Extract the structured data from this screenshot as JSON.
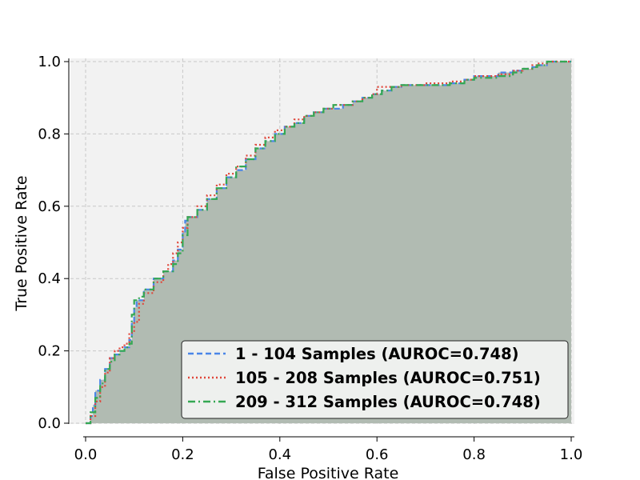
{
  "chart_data": {
    "type": "line",
    "title": "",
    "xlabel": "False Positive Rate",
    "ylabel": "True Positive Rate",
    "xlim": [
      0.0,
      1.0
    ],
    "ylim": [
      0.0,
      1.0
    ],
    "xticks": [
      "0.0",
      "0.2",
      "0.4",
      "0.6",
      "0.8",
      "1.0"
    ],
    "yticks": [
      "0.0",
      "0.2",
      "0.4",
      "0.6",
      "0.8",
      "1.0"
    ],
    "grid": true,
    "legend_position": "lower-right",
    "fill_under_curves": true,
    "series": [
      {
        "name": "1 - 104 Samples (AUROC=0.748)",
        "color": "#4a86e8",
        "dash": "dashed",
        "x": [
          0.0,
          0.01,
          0.015,
          0.02,
          0.03,
          0.04,
          0.05,
          0.06,
          0.07,
          0.08,
          0.09,
          0.095,
          0.1,
          0.105,
          0.12,
          0.14,
          0.16,
          0.18,
          0.19,
          0.2,
          0.205,
          0.21,
          0.23,
          0.25,
          0.27,
          0.29,
          0.31,
          0.33,
          0.35,
          0.37,
          0.39,
          0.41,
          0.43,
          0.45,
          0.47,
          0.49,
          0.51,
          0.53,
          0.55,
          0.57,
          0.59,
          0.61,
          0.63,
          0.65,
          0.7,
          0.75,
          0.78,
          0.8,
          0.85,
          0.88,
          0.9,
          0.92,
          0.93,
          0.95,
          1.0
        ],
        "y": [
          0.0,
          0.02,
          0.05,
          0.09,
          0.12,
          0.15,
          0.18,
          0.19,
          0.2,
          0.21,
          0.23,
          0.28,
          0.32,
          0.34,
          0.37,
          0.4,
          0.42,
          0.45,
          0.48,
          0.53,
          0.56,
          0.57,
          0.59,
          0.62,
          0.65,
          0.68,
          0.7,
          0.73,
          0.76,
          0.78,
          0.8,
          0.82,
          0.83,
          0.85,
          0.86,
          0.87,
          0.87,
          0.88,
          0.89,
          0.9,
          0.91,
          0.92,
          0.93,
          0.935,
          0.935,
          0.94,
          0.95,
          0.96,
          0.97,
          0.975,
          0.98,
          0.985,
          0.99,
          1.0,
          1.0
        ]
      },
      {
        "name": "105 - 208 Samples (AUROC=0.751)",
        "color": "#e0463a",
        "dash": "dotted",
        "x": [
          0.0,
          0.01,
          0.02,
          0.03,
          0.04,
          0.05,
          0.06,
          0.07,
          0.08,
          0.09,
          0.1,
          0.11,
          0.12,
          0.14,
          0.16,
          0.17,
          0.18,
          0.19,
          0.2,
          0.21,
          0.23,
          0.25,
          0.27,
          0.29,
          0.31,
          0.33,
          0.35,
          0.37,
          0.39,
          0.41,
          0.43,
          0.45,
          0.47,
          0.49,
          0.51,
          0.53,
          0.55,
          0.57,
          0.59,
          0.6,
          0.62,
          0.65,
          0.7,
          0.75,
          0.78,
          0.8,
          0.85,
          0.88,
          0.9,
          0.92,
          0.93,
          0.95,
          1.0
        ],
        "y": [
          0.0,
          0.02,
          0.06,
          0.1,
          0.14,
          0.18,
          0.2,
          0.21,
          0.22,
          0.25,
          0.28,
          0.33,
          0.36,
          0.39,
          0.42,
          0.44,
          0.47,
          0.5,
          0.54,
          0.57,
          0.6,
          0.63,
          0.66,
          0.69,
          0.71,
          0.74,
          0.77,
          0.79,
          0.81,
          0.82,
          0.84,
          0.85,
          0.86,
          0.87,
          0.88,
          0.88,
          0.89,
          0.9,
          0.91,
          0.93,
          0.93,
          0.935,
          0.94,
          0.945,
          0.95,
          0.96,
          0.965,
          0.975,
          0.98,
          0.99,
          0.995,
          1.0,
          1.0
        ]
      },
      {
        "name": "209 - 312 Samples (AUROC=0.748)",
        "color": "#34a853",
        "dash": "dashdot",
        "x": [
          0.0,
          0.01,
          0.02,
          0.03,
          0.04,
          0.05,
          0.06,
          0.07,
          0.08,
          0.09,
          0.095,
          0.1,
          0.11,
          0.12,
          0.14,
          0.16,
          0.18,
          0.19,
          0.2,
          0.21,
          0.23,
          0.25,
          0.27,
          0.29,
          0.31,
          0.33,
          0.35,
          0.37,
          0.39,
          0.41,
          0.43,
          0.45,
          0.47,
          0.49,
          0.51,
          0.53,
          0.55,
          0.57,
          0.59,
          0.61,
          0.63,
          0.65,
          0.7,
          0.75,
          0.78,
          0.8,
          0.85,
          0.88,
          0.9,
          0.92,
          0.93,
          0.95,
          1.0
        ],
        "y": [
          0.0,
          0.03,
          0.07,
          0.11,
          0.15,
          0.17,
          0.19,
          0.2,
          0.21,
          0.22,
          0.3,
          0.34,
          0.35,
          0.37,
          0.4,
          0.42,
          0.44,
          0.47,
          0.52,
          0.57,
          0.59,
          0.62,
          0.65,
          0.68,
          0.71,
          0.73,
          0.76,
          0.78,
          0.8,
          0.82,
          0.83,
          0.85,
          0.86,
          0.87,
          0.88,
          0.88,
          0.89,
          0.9,
          0.91,
          0.92,
          0.93,
          0.935,
          0.935,
          0.94,
          0.95,
          0.955,
          0.96,
          0.97,
          0.98,
          0.985,
          0.99,
          1.0,
          1.0
        ]
      }
    ]
  },
  "colors": {
    "plot_background": "#f2f2f2",
    "fill_overlap": "#b1bbb2",
    "grid": "#c8c8c8",
    "legend_background": "#eef0ee"
  }
}
